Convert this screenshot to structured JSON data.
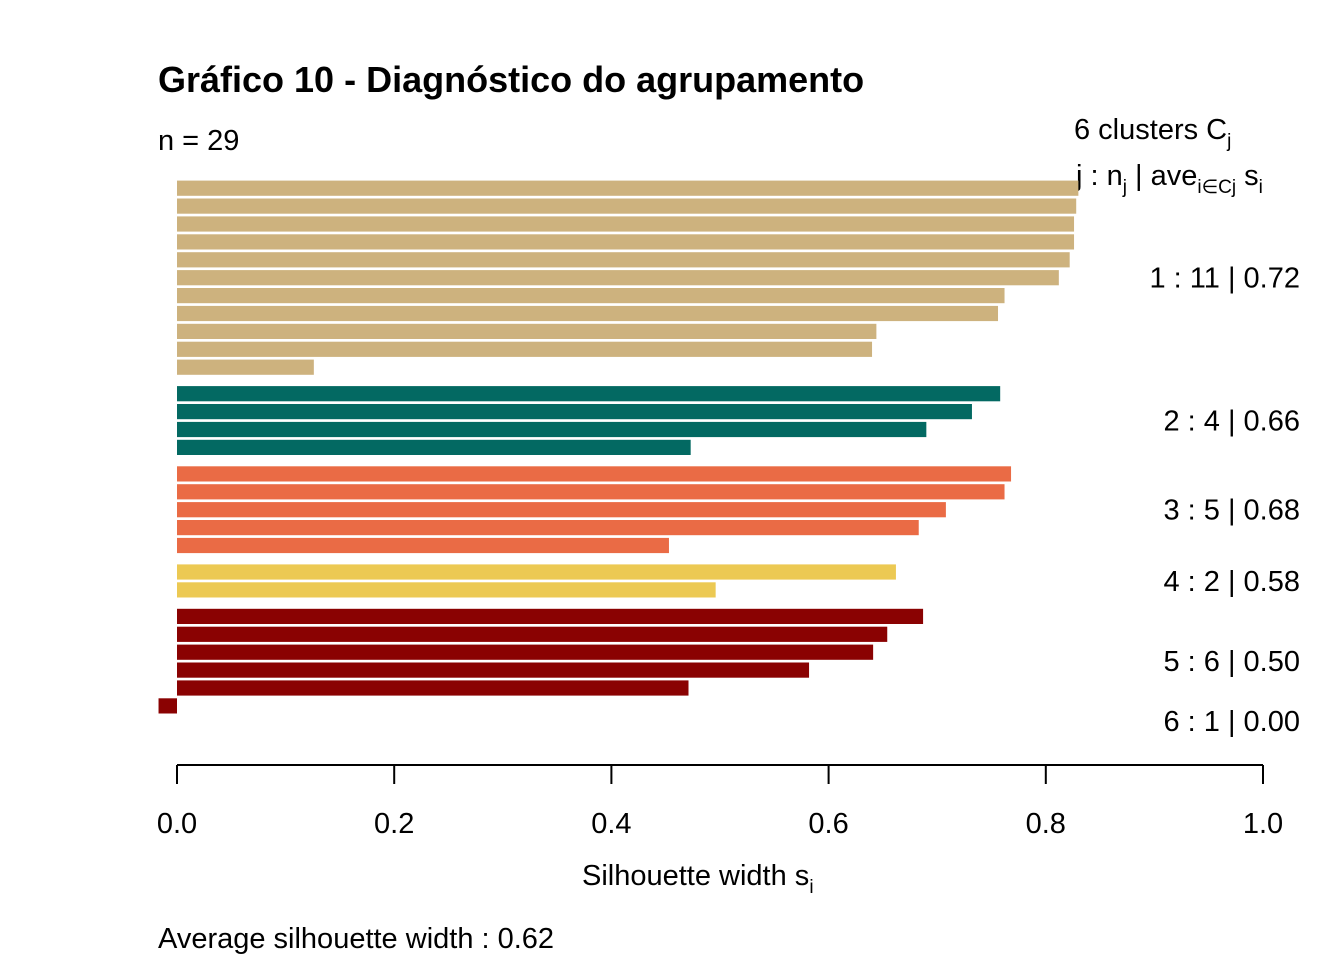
{
  "chart_data": {
    "type": "bar",
    "orientation": "horizontal",
    "title": "Gráfico 10 - Diagnóstico do agrupamento",
    "n_label": "n = 29",
    "header": {
      "line1_prefix": "6  clusters  C",
      "line1_sub": "j",
      "line2_j": "j :  n",
      "line2_nj_sub": "j",
      "line2_ave": " | ave",
      "line2_ave_sub": "i∈Cj",
      "line2_s": "  s",
      "line2_s_sub": "i"
    },
    "xlabel": "Silhouette width s",
    "xlabel_sub": "i",
    "footer": "Average silhouette width :  0.62",
    "xlim": [
      0,
      1
    ],
    "xticks": [
      "0.0",
      "0.2",
      "0.4",
      "0.6",
      "0.8",
      "1.0"
    ],
    "clusters": [
      {
        "id": 1,
        "label": "1 :   11  |  0.72",
        "color": "#CDB27E",
        "values": [
          0.83,
          0.828,
          0.826,
          0.826,
          0.822,
          0.812,
          0.762,
          0.756,
          0.644,
          0.64,
          0.126
        ]
      },
      {
        "id": 2,
        "label": "2 :   4  |  0.66",
        "color": "#036962",
        "values": [
          0.758,
          0.732,
          0.69,
          0.473
        ]
      },
      {
        "id": 3,
        "label": "3 :   5  |  0.68",
        "color": "#EA6B45",
        "values": [
          0.768,
          0.762,
          0.708,
          0.683,
          0.453
        ]
      },
      {
        "id": 4,
        "label": "4 :   2  |  0.58",
        "color": "#ECC953",
        "values": [
          0.662,
          0.496
        ]
      },
      {
        "id": 5,
        "label": "5 :   6  |  0.50",
        "color": "#8A0202",
        "values": [
          0.687,
          0.654,
          0.641,
          0.582,
          0.471,
          -0.017
        ]
      },
      {
        "id": 6,
        "label": "6 :   1  |  0.00",
        "color": "#8A0202",
        "values": [
          0
        ]
      }
    ]
  }
}
